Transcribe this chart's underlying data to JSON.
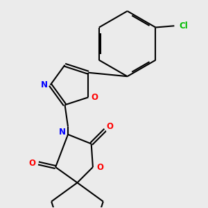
{
  "bg_color": "#ebebeb",
  "bond_color": "#000000",
  "bond_width": 1.5,
  "atom_colors": {
    "N": "#0000ff",
    "O": "#ff0000",
    "Cl": "#00bb00",
    "C": "#000000"
  },
  "font_size": 8.5
}
